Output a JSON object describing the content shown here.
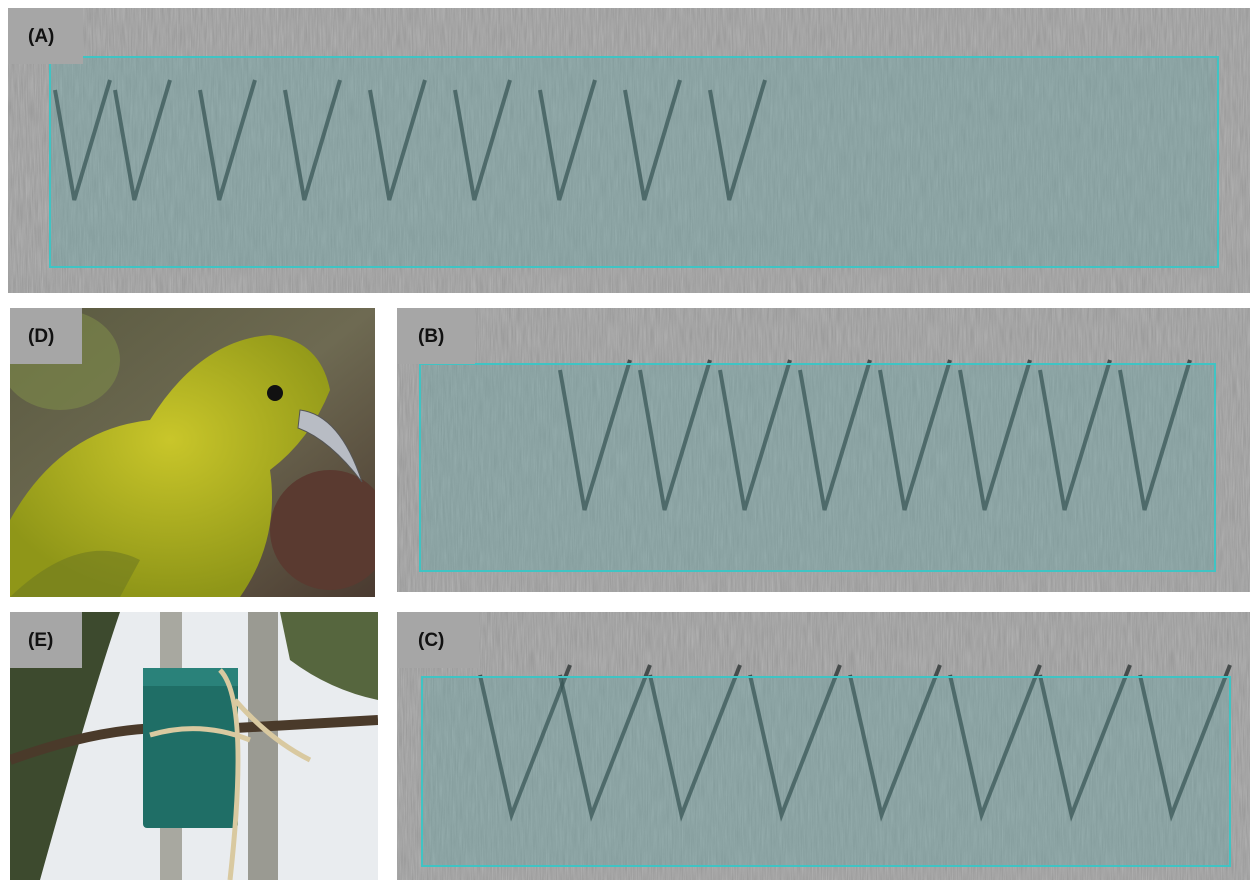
{
  "panels": [
    {
      "label": "(A)"
    },
    {
      "label": "(D)"
    },
    {
      "label": "(B)"
    },
    {
      "label": "(E)"
    },
    {
      "label": "(C)"
    }
  ]
}
